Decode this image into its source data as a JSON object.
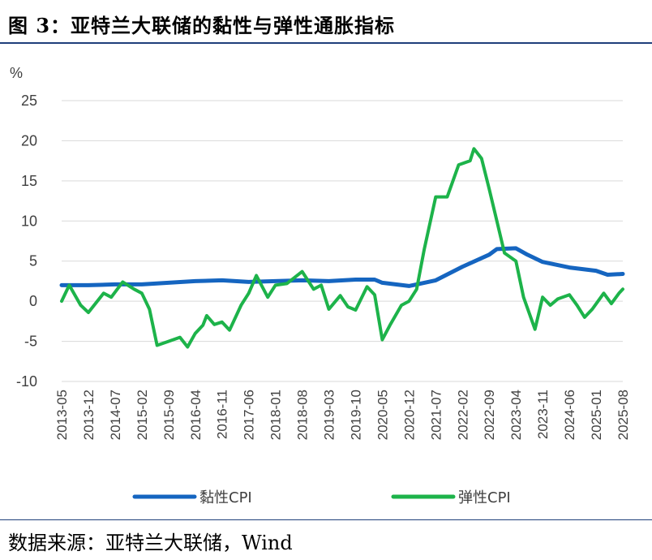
{
  "header": {
    "title": "图 3：亚特兰大联储的黏性与弹性通胀指标"
  },
  "footer": {
    "source": "数据来源：亚特兰大联储，Wind"
  },
  "colors": {
    "sticky": "#1565c0",
    "flexible": "#1db34a",
    "grid": "#d9d9d9",
    "rule": "#1f3f7a"
  },
  "chart_data": {
    "type": "line",
    "title": "",
    "xlabel": "",
    "ylabel": "%",
    "ylim": [
      -10,
      25
    ],
    "yticks": [
      25,
      20,
      15,
      10,
      5,
      0,
      -5,
      -10
    ],
    "x_tick_labels": [
      "2013-05",
      "2013-12",
      "2014-07",
      "2015-02",
      "2015-09",
      "2016-04",
      "2016-11",
      "2017-06",
      "2018-01",
      "2018-08",
      "2019-03",
      "2019-10",
      "2020-05",
      "2020-12",
      "2021-07",
      "2022-02",
      "2022-09",
      "2023-04",
      "2023-11",
      "2024-06",
      "2025-01",
      "2025-08"
    ],
    "x_start": "2013-05",
    "legend_position": "bottom",
    "grid": true,
    "series": [
      {
        "name": "黏性CPI",
        "points": [
          [
            "2013-05",
            2.0
          ],
          [
            "2013-12",
            2.0
          ],
          [
            "2014-07",
            2.1
          ],
          [
            "2015-02",
            2.1
          ],
          [
            "2015-09",
            2.3
          ],
          [
            "2016-04",
            2.5
          ],
          [
            "2016-11",
            2.6
          ],
          [
            "2017-06",
            2.4
          ],
          [
            "2018-01",
            2.5
          ],
          [
            "2018-08",
            2.6
          ],
          [
            "2019-03",
            2.5
          ],
          [
            "2019-10",
            2.7
          ],
          [
            "2020-03",
            2.7
          ],
          [
            "2020-05",
            2.3
          ],
          [
            "2020-12",
            1.9
          ],
          [
            "2021-07",
            2.6
          ],
          [
            "2022-02",
            4.3
          ],
          [
            "2022-09",
            5.8
          ],
          [
            "2022-11",
            6.5
          ],
          [
            "2023-04",
            6.6
          ],
          [
            "2023-07",
            5.8
          ],
          [
            "2023-11",
            4.9
          ],
          [
            "2024-06",
            4.2
          ],
          [
            "2025-01",
            3.8
          ],
          [
            "2025-04",
            3.3
          ],
          [
            "2025-08",
            3.4
          ]
        ]
      },
      {
        "name": "弹性CPI",
        "points": [
          [
            "2013-05",
            0
          ],
          [
            "2013-07",
            2.0
          ],
          [
            "2013-10",
            -0.5
          ],
          [
            "2013-12",
            -1.4
          ],
          [
            "2014-04",
            1.0
          ],
          [
            "2014-06",
            0.5
          ],
          [
            "2014-09",
            2.4
          ],
          [
            "2014-12",
            1.5
          ],
          [
            "2015-02",
            1.0
          ],
          [
            "2015-04",
            -1.0
          ],
          [
            "2015-06",
            -5.5
          ],
          [
            "2015-09",
            -5.0
          ],
          [
            "2015-12",
            -4.5
          ],
          [
            "2016-02",
            -5.7
          ],
          [
            "2016-04",
            -4.0
          ],
          [
            "2016-06",
            -3.0
          ],
          [
            "2016-07",
            -1.8
          ],
          [
            "2016-09",
            -2.9
          ],
          [
            "2016-11",
            -2.6
          ],
          [
            "2017-01",
            -3.6
          ],
          [
            "2017-04",
            -0.5
          ],
          [
            "2017-06",
            1.0
          ],
          [
            "2017-08",
            3.2
          ],
          [
            "2017-11",
            0.5
          ],
          [
            "2018-01",
            2.0
          ],
          [
            "2018-04",
            2.2
          ],
          [
            "2018-08",
            3.7
          ],
          [
            "2018-11",
            1.5
          ],
          [
            "2019-01",
            2.0
          ],
          [
            "2019-03",
            -1.0
          ],
          [
            "2019-06",
            0.7
          ],
          [
            "2019-08",
            -0.7
          ],
          [
            "2019-10",
            -1.1
          ],
          [
            "2020-01",
            1.8
          ],
          [
            "2020-03",
            0.8
          ],
          [
            "2020-05",
            -4.8
          ],
          [
            "2020-07",
            -3.0
          ],
          [
            "2020-10",
            -0.5
          ],
          [
            "2020-12",
            0.0
          ],
          [
            "2021-02",
            1.5
          ],
          [
            "2021-04",
            6.5
          ],
          [
            "2021-07",
            13.0
          ],
          [
            "2021-10",
            13.0
          ],
          [
            "2022-01",
            17.0
          ],
          [
            "2022-04",
            17.5
          ],
          [
            "2022-05",
            19.0
          ],
          [
            "2022-07",
            17.8
          ],
          [
            "2022-09",
            14.0
          ],
          [
            "2022-11",
            10.0
          ],
          [
            "2023-01",
            6.0
          ],
          [
            "2023-04",
            5.0
          ],
          [
            "2023-06",
            0.5
          ],
          [
            "2023-09",
            -3.5
          ],
          [
            "2023-11",
            0.5
          ],
          [
            "2024-01",
            -0.5
          ],
          [
            "2024-03",
            0.3
          ],
          [
            "2024-06",
            0.8
          ],
          [
            "2024-08",
            -0.5
          ],
          [
            "2024-10",
            -2.0
          ],
          [
            "2024-12",
            -1.0
          ],
          [
            "2025-03",
            1.0
          ],
          [
            "2025-05",
            -0.3
          ],
          [
            "2025-07",
            1.0
          ],
          [
            "2025-08",
            1.5
          ]
        ]
      }
    ]
  }
}
